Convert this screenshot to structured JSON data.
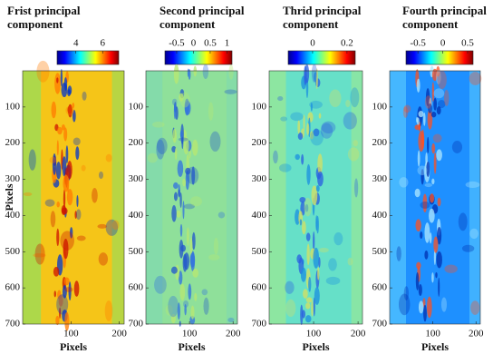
{
  "chart_data": [
    {
      "type": "heatmap",
      "title": "Frist principal component",
      "colormap": "jet",
      "clim": [
        2.6,
        7.2
      ],
      "cticks": [
        4,
        6
      ],
      "xlabel": "Pixels",
      "ylabel": "Pixels",
      "xlim": [
        0,
        210
      ],
      "xticks": [
        100,
        200
      ],
      "ylim": [
        0,
        700
      ],
      "yticks": [
        100,
        200,
        300,
        400,
        500,
        600,
        700
      ]
    },
    {
      "type": "heatmap",
      "title": "Second principal component",
      "colormap": "jet",
      "clim": [
        -0.85,
        1.15
      ],
      "cticks": [
        -0.5,
        0,
        0.5,
        1
      ],
      "xlabel": "Pixels",
      "xlim": [
        0,
        210
      ],
      "xticks": [
        100,
        200
      ],
      "ylim": [
        0,
        700
      ],
      "yticks": [
        100,
        200,
        300,
        400,
        500,
        600,
        700
      ]
    },
    {
      "type": "heatmap",
      "title": "Thrid principal component",
      "colormap": "jet",
      "clim": [
        -0.142,
        0.248
      ],
      "cticks": [
        0,
        0.2
      ],
      "xlabel": "Pixels",
      "xlim": [
        0,
        210
      ],
      "xticks": [
        100,
        200
      ],
      "ylim": [
        0,
        700
      ],
      "yticks": [
        100,
        200,
        300,
        400,
        500,
        600,
        700
      ]
    },
    {
      "type": "heatmap",
      "title": "Fourth principal component",
      "colormap": "jet",
      "clim": [
        -0.74,
        0.61
      ],
      "cticks": [
        -0.5,
        0,
        0.5
      ],
      "xlabel": "Pixels",
      "xlim": [
        0,
        210
      ],
      "xticks": [
        100,
        200
      ],
      "ylim": [
        0,
        700
      ],
      "yticks": [
        100,
        200,
        300,
        400,
        500,
        600,
        700
      ]
    }
  ]
}
